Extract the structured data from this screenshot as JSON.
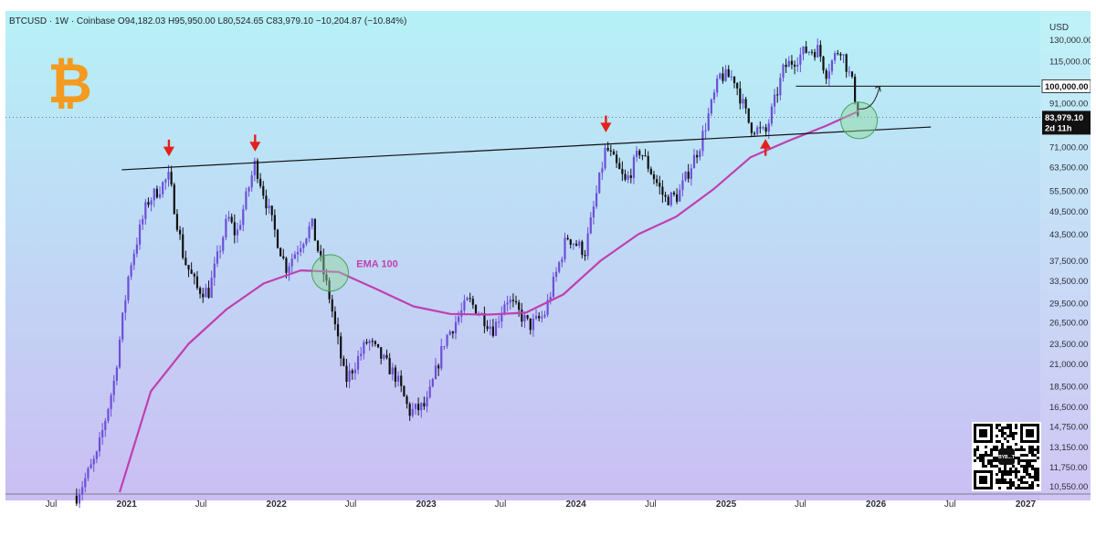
{
  "header": {
    "symbol": "BTCUSD",
    "interval": "1W",
    "exchange": "Coinbase",
    "text": "BTCUSD · 1W · Coinbase  O94,182.03  H95,950.00  L80,524.65  C83,979.10  −10,204.87 (−10.84%)"
  },
  "currency_label": "USD",
  "logo_glyph": "₿",
  "colors": {
    "bg_top": "#b6f1f7",
    "bg_bottom": "#cbbef3",
    "candle_up": "#6d4fd8",
    "candle_down": "#111111",
    "ema": "#c03fb0",
    "arrow": "#e3211c",
    "logo": "#f39a21",
    "circle_fill": "#8fd89a",
    "circle_stroke": "#45a35a"
  },
  "price_tags": {
    "level": "100,000.00",
    "last": "83,979.10",
    "countdown": "2d 11h"
  },
  "qr_label": "BYB...T",
  "chart_data": {
    "type": "candlestick",
    "title": "",
    "ylabel": "",
    "y_scale": "log",
    "ylim": [
      10100,
      145000
    ],
    "y_ticks": [
      "130,000.00",
      "115,000.00",
      "102,000.00",
      "91,000.00",
      "81,000.00",
      "71,000.00",
      "63,500.00",
      "55,500.00",
      "49,500.00",
      "43,500.00",
      "37,500.00",
      "33,500.00",
      "29,500.00",
      "26,500.00",
      "23,500.00",
      "21,000.00",
      "18,500.00",
      "16,500.00",
      "14,750.00",
      "13,150.00",
      "11,750.00",
      "10,550.00"
    ],
    "x_ticks": [
      {
        "label": "Jul",
        "bold": false,
        "date": "2020-07-01"
      },
      {
        "label": "2021",
        "bold": true,
        "date": "2021-01-01"
      },
      {
        "label": "Jul",
        "bold": false,
        "date": "2021-07-01"
      },
      {
        "label": "2022",
        "bold": true,
        "date": "2022-01-01"
      },
      {
        "label": "Jul",
        "bold": false,
        "date": "2022-07-01"
      },
      {
        "label": "2023",
        "bold": true,
        "date": "2023-01-01"
      },
      {
        "label": "Jul",
        "bold": false,
        "date": "2023-07-01"
      },
      {
        "label": "2024",
        "bold": true,
        "date": "2024-01-01"
      },
      {
        "label": "Jul",
        "bold": false,
        "date": "2024-07-01"
      },
      {
        "label": "2025",
        "bold": true,
        "date": "2025-01-01"
      },
      {
        "label": "Jul",
        "bold": false,
        "date": "2025-07-01"
      },
      {
        "label": "2026",
        "bold": true,
        "date": "2026-01-01"
      },
      {
        "label": "Jul",
        "bold": false,
        "date": "2026-07-01"
      },
      {
        "label": "2027",
        "bold": true,
        "date": "2027-01-01"
      }
    ],
    "candle_anchors": [
      [
        "2020-09-01",
        10000
      ],
      [
        "2020-10-20",
        12500
      ],
      [
        "2020-12-01",
        19000
      ],
      [
        "2021-01-08",
        36000
      ],
      [
        "2021-02-20",
        52000
      ],
      [
        "2021-04-14",
        60000
      ],
      [
        "2021-05-20",
        38000
      ],
      [
        "2021-06-22",
        32000
      ],
      [
        "2021-07-20",
        31500
      ],
      [
        "2021-09-05",
        48000
      ],
      [
        "2021-09-25",
        43000
      ],
      [
        "2021-11-10",
        65000
      ],
      [
        "2021-12-20",
        47000
      ],
      [
        "2022-01-24",
        36000
      ],
      [
        "2022-03-28",
        46000
      ],
      [
        "2022-05-12",
        30000
      ],
      [
        "2022-06-18",
        19000
      ],
      [
        "2022-08-12",
        24000
      ],
      [
        "2022-10-20",
        19500
      ],
      [
        "2022-11-21",
        16000
      ],
      [
        "2023-01-01",
        16600
      ],
      [
        "2023-02-15",
        24000
      ],
      [
        "2023-04-14",
        30000
      ],
      [
        "2023-06-15",
        25500
      ],
      [
        "2023-07-15",
        30500
      ],
      [
        "2023-09-10",
        26000
      ],
      [
        "2023-10-15",
        27500
      ],
      [
        "2023-12-10",
        43000
      ],
      [
        "2024-01-23",
        39500
      ],
      [
        "2024-03-14",
        71000
      ],
      [
        "2024-05-01",
        58000
      ],
      [
        "2024-06-05",
        70000
      ],
      [
        "2024-08-05",
        53000
      ],
      [
        "2024-09-06",
        54000
      ],
      [
        "2024-10-29",
        72000
      ],
      [
        "2024-12-17",
        106000
      ],
      [
        "2025-01-20",
        105000
      ],
      [
        "2025-02-28",
        80000
      ],
      [
        "2025-04-07",
        76500
      ],
      [
        "2025-05-22",
        111000
      ],
      [
        "2025-07-14",
        122000
      ],
      [
        "2025-08-14",
        123000
      ],
      [
        "2025-09-01",
        108000
      ],
      [
        "2025-10-06",
        125000
      ],
      [
        "2025-11-05",
        101000
      ],
      [
        "2025-11-21",
        83979
      ]
    ],
    "ema_100": [
      [
        "2020-12-15",
        10200
      ],
      [
        "2021-03-01",
        18000
      ],
      [
        "2021-06-01",
        23500
      ],
      [
        "2021-09-01",
        28500
      ],
      [
        "2021-12-01",
        33000
      ],
      [
        "2022-03-01",
        35500
      ],
      [
        "2022-06-01",
        35200
      ],
      [
        "2022-09-01",
        32000
      ],
      [
        "2022-12-01",
        29000
      ],
      [
        "2023-03-01",
        27800
      ],
      [
        "2023-06-01",
        27700
      ],
      [
        "2023-09-01",
        28000
      ],
      [
        "2023-12-01",
        31000
      ],
      [
        "2024-03-01",
        37500
      ],
      [
        "2024-06-01",
        43500
      ],
      [
        "2024-09-01",
        48000
      ],
      [
        "2024-12-01",
        56000
      ],
      [
        "2025-03-01",
        67000
      ],
      [
        "2025-06-01",
        73500
      ],
      [
        "2025-09-01",
        80000
      ],
      [
        "2025-11-21",
        87000
      ]
    ],
    "trendline": [
      [
        "2020-12-20",
        62500
      ],
      [
        "2026-05-15",
        79500
      ]
    ],
    "hline": {
      "value": 100000,
      "from": "2025-06-20"
    },
    "annotations": {
      "ema_label": "EMA 100",
      "down_arrows": [
        "2021-04-14",
        "2021-11-10",
        "2024-03-14"
      ],
      "up_arrows": [
        "2025-04-07"
      ],
      "circles": [
        [
          "2022-05-12",
          35000
        ],
        [
          "2025-11-21",
          82500
        ]
      ],
      "projection_arrow": [
        [
          "2025-11-21",
          88000
        ],
        [
          "2026-01-10",
          100000
        ]
      ]
    }
  }
}
